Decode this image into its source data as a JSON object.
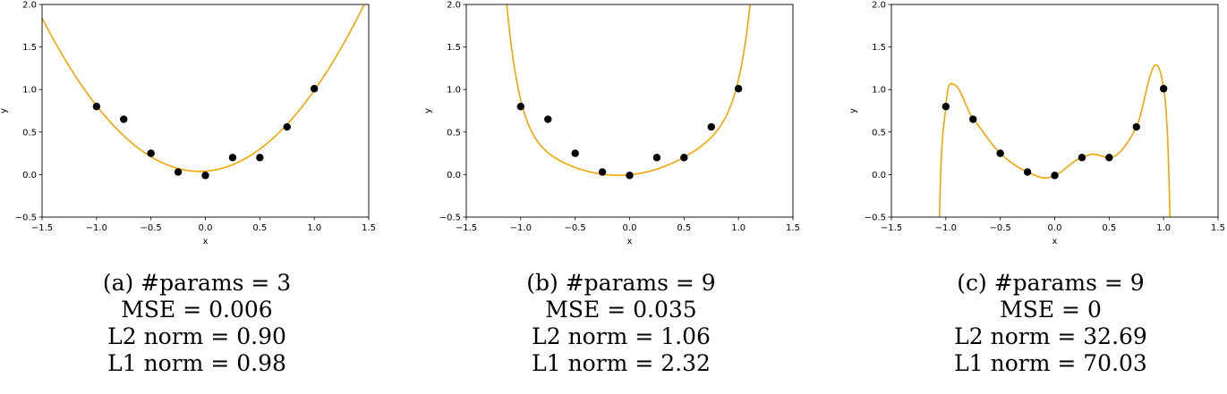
{
  "chart_data": [
    {
      "type": "line",
      "panel": "a",
      "xlabel": "x",
      "ylabel": "y",
      "xlim": [
        -1.5,
        1.5
      ],
      "ylim": [
        -0.5,
        2.0
      ],
      "xticks": [
        "−1.5",
        "−1.0",
        "−0.5",
        "0.0",
        "0.5",
        "1.0",
        "1.5"
      ],
      "yticks": [
        "−0.5",
        "0.0",
        "0.5",
        "1.0",
        "1.5",
        "2.0"
      ],
      "points": {
        "x": [
          -1.0,
          -0.75,
          -0.5,
          -0.25,
          0.0,
          0.25,
          0.5,
          0.75,
          1.0
        ],
        "y": [
          0.8,
          0.65,
          0.25,
          0.03,
          -0.01,
          0.2,
          0.2,
          0.56,
          1.01
        ]
      },
      "curve_color": "#f5a400",
      "caption": {
        "params": "(a) #params = 3",
        "mse": "MSE = 0.006",
        "l2": "L2 norm = 0.90",
        "l1": "L1 norm = 0.98"
      }
    },
    {
      "type": "line",
      "panel": "b",
      "xlabel": "x",
      "ylabel": "y",
      "xlim": [
        -1.5,
        1.5
      ],
      "ylim": [
        -0.5,
        2.0
      ],
      "xticks": [
        "−1.5",
        "−1.0",
        "−0.5",
        "0.0",
        "0.5",
        "1.0",
        "1.5"
      ],
      "yticks": [
        "−0.5",
        "0.0",
        "0.5",
        "1.0",
        "1.5",
        "2.0"
      ],
      "points": {
        "x": [
          -1.0,
          -0.75,
          -0.5,
          -0.25,
          0.0,
          0.25,
          0.5,
          0.75,
          1.0
        ],
        "y": [
          0.8,
          0.65,
          0.25,
          0.03,
          -0.01,
          0.2,
          0.2,
          0.56,
          1.01
        ]
      },
      "curve_color": "#f5a400",
      "caption": {
        "params": "(b) #params = 9",
        "mse": "MSE = 0.035",
        "l2": "L2 norm = 1.06",
        "l1": "L1 norm = 2.32"
      }
    },
    {
      "type": "line",
      "panel": "c",
      "xlabel": "x",
      "ylabel": "y",
      "xlim": [
        -1.5,
        1.5
      ],
      "ylim": [
        -0.5,
        2.0
      ],
      "xticks": [
        "−1.5",
        "−1.0",
        "−0.5",
        "0.0",
        "0.5",
        "1.0",
        "1.5"
      ],
      "yticks": [
        "−0.5",
        "0.0",
        "0.5",
        "1.0",
        "1.5",
        "2.0"
      ],
      "points": {
        "x": [
          -1.0,
          -0.75,
          -0.5,
          -0.25,
          0.0,
          0.25,
          0.5,
          0.75,
          1.0
        ],
        "y": [
          0.8,
          0.65,
          0.25,
          0.03,
          -0.01,
          0.2,
          0.2,
          0.56,
          1.01
        ]
      },
      "curve_color": "#f5a400",
      "caption": {
        "params": "(c) #params = 9",
        "mse": "MSE = 0",
        "l2": "L2 norm = 32.69",
        "l1": "L1 norm = 70.03"
      }
    }
  ]
}
